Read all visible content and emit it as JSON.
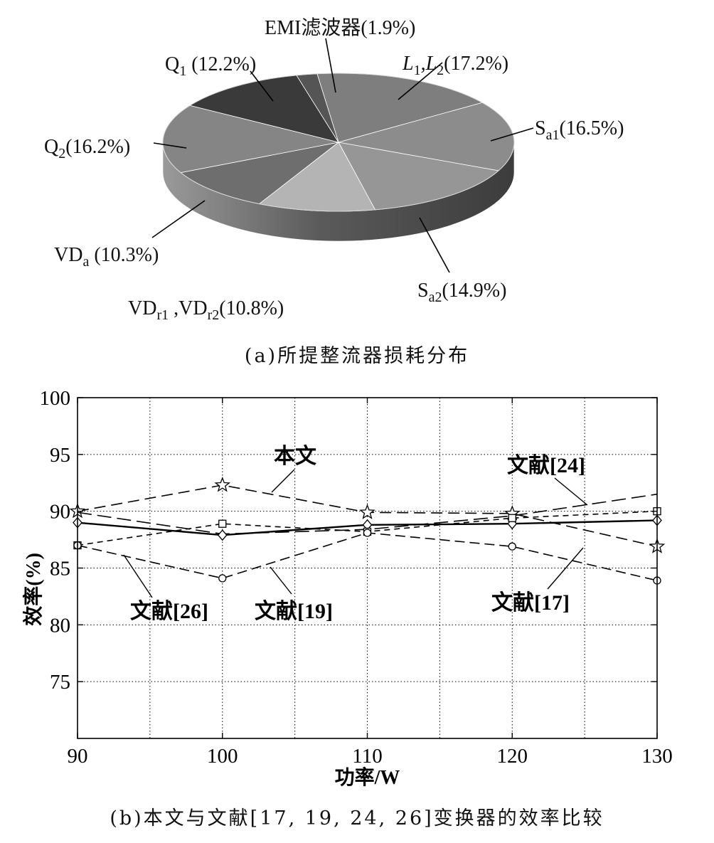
{
  "captions": {
    "a": "(a)所提整流器损耗分布",
    "b": "(b)本文与文献[17, 19, 24, 26]变换器的效率比较"
  },
  "chart_data": [
    {
      "type": "pie",
      "title": "",
      "slices": [
        {
          "key": "l12",
          "label": "L",
          "sub": "1",
          "label2": ",L",
          "sub2": "2",
          "pct": "(17.2%)",
          "value": 17.2,
          "color": "#7e7e7e",
          "italic": true
        },
        {
          "key": "sa1",
          "label": "S",
          "sub": "a1",
          "pct": "(16.5%)",
          "value": 16.5,
          "color": "#8c8c8c"
        },
        {
          "key": "sa2",
          "label": "S",
          "sub": "a2",
          "pct": "(14.9%)",
          "value": 14.9,
          "color": "#969696"
        },
        {
          "key": "vdr",
          "label": "VD",
          "sub": "r1",
          "label2": " ,VD",
          "sub2": "r2",
          "pct": "(10.8%)",
          "value": 10.8,
          "color": "#b4b4b4"
        },
        {
          "key": "vda",
          "label": "VD",
          "sub": "a",
          "pct": " (10.3%)",
          "value": 10.3,
          "color": "#6e6e6e"
        },
        {
          "key": "q2",
          "label": "Q",
          "sub": "2",
          "pct": "(16.2%)",
          "value": 16.2,
          "color": "#858585"
        },
        {
          "key": "q1",
          "label": "Q",
          "sub": "1",
          "pct": " (12.2%)",
          "value": 12.2,
          "color": "#3a3a3a"
        },
        {
          "key": "emi",
          "label": "EMI滤波器",
          "sub": "",
          "pct": "(1.9%)",
          "value": 1.9,
          "color": "#555555"
        }
      ]
    },
    {
      "type": "line",
      "title": "",
      "xlabel": "功率/W",
      "ylabel": "效率(%)",
      "xlim": [
        90,
        130
      ],
      "ylim": [
        70,
        100
      ],
      "xticks": [
        90,
        100,
        110,
        120,
        130
      ],
      "yticks": [
        75,
        80,
        85,
        90,
        95,
        100
      ],
      "grid": true,
      "x": [
        90,
        100,
        110,
        120,
        130
      ],
      "series": [
        {
          "key": "this",
          "name": "本文",
          "values": [
            90,
            92.3,
            89.9,
            89.8,
            86.9
          ],
          "marker": "star",
          "dash": "16,8",
          "width": 1.6
        },
        {
          "key": "r24",
          "name": "文献[24]",
          "values": [
            89.9,
            88.0,
            88.4,
            89.6,
            91.5
          ],
          "marker": "none",
          "dash": "20,8",
          "width": 1.6
        },
        {
          "key": "r17",
          "name": "文献[17]",
          "values": [
            89.0,
            87.9,
            88.8,
            88.9,
            89.2
          ],
          "marker": "diamond",
          "dash": "",
          "width": 2.4
        },
        {
          "key": "r26",
          "name": "文献[26]",
          "values": [
            87.0,
            88.9,
            88.2,
            89.4,
            90.0
          ],
          "marker": "square",
          "dash": "8,6",
          "width": 1.6
        },
        {
          "key": "r19",
          "name": "文献[19]",
          "values": [
            87.0,
            84.1,
            88.1,
            86.9,
            83.9
          ],
          "marker": "circle",
          "dash": "14,7",
          "width": 1.6
        }
      ]
    }
  ]
}
